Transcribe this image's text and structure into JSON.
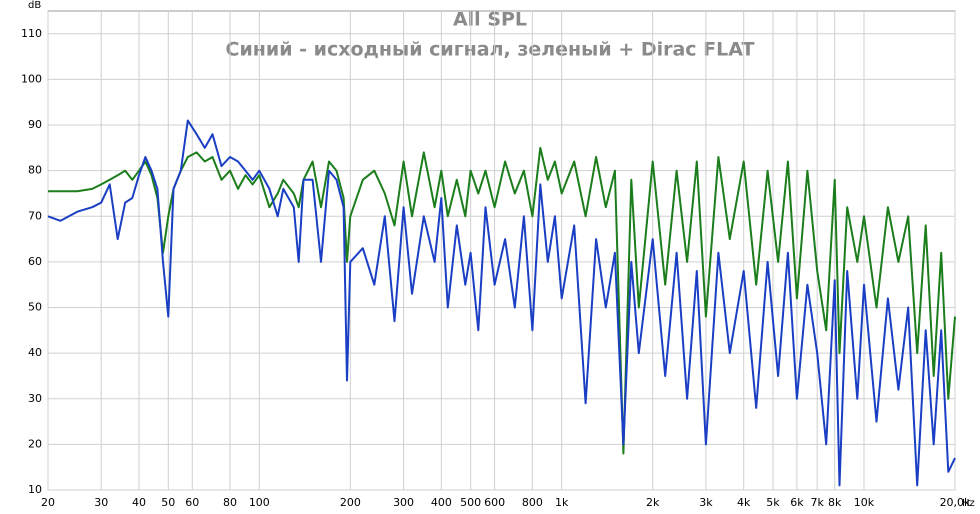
{
  "chart_data": {
    "type": "line",
    "title": "All SPL",
    "subtitle": "Синий - исходный сигнал, зеленый + Dirac FLAT",
    "ylabel": "dB",
    "xlabel": "Hz",
    "xscale": "log",
    "grid": true,
    "xlim": [
      20,
      20000
    ],
    "ylim": [
      10,
      115
    ],
    "yticks": [
      10,
      20,
      30,
      40,
      50,
      60,
      70,
      80,
      90,
      100,
      110
    ],
    "xticks": [
      20,
      30,
      40,
      50,
      60,
      80,
      100,
      200,
      300,
      400,
      500,
      600,
      800,
      {
        "value": 1000,
        "label": "1k"
      },
      {
        "value": 2000,
        "label": "2k"
      },
      {
        "value": 3000,
        "label": "3k"
      },
      {
        "value": 4000,
        "label": "4k"
      },
      {
        "value": 5000,
        "label": "5k"
      },
      {
        "value": 6000,
        "label": "6k"
      },
      {
        "value": 7000,
        "label": "7k"
      },
      {
        "value": 8000,
        "label": "8k"
      },
      {
        "value": 10000,
        "label": "10k"
      },
      {
        "value": 20000,
        "label": "20,0k"
      }
    ],
    "x": [
      20,
      22,
      25,
      28,
      30,
      32,
      34,
      36,
      38,
      40,
      42,
      44,
      46,
      48,
      50,
      52,
      55,
      58,
      62,
      66,
      70,
      75,
      80,
      85,
      90,
      95,
      100,
      108,
      115,
      120,
      130,
      135,
      140,
      150,
      160,
      170,
      180,
      190,
      195,
      200,
      220,
      240,
      260,
      280,
      300,
      320,
      350,
      380,
      400,
      420,
      450,
      480,
      500,
      530,
      560,
      600,
      650,
      700,
      750,
      800,
      850,
      900,
      950,
      1000,
      1100,
      1200,
      1300,
      1400,
      1500,
      1600,
      1700,
      1800,
      2000,
      2200,
      2400,
      2600,
      2800,
      3000,
      3300,
      3600,
      4000,
      4400,
      4800,
      5200,
      5600,
      6000,
      6500,
      7000,
      7500,
      8000,
      8300,
      8800,
      9500,
      10000,
      11000,
      12000,
      13000,
      14000,
      15000,
      16000,
      17000,
      18000,
      19000,
      20000
    ],
    "series": [
      {
        "name": "Синий",
        "color": "#1a3fc4",
        "values": [
          70,
          69,
          71,
          72,
          73,
          77,
          65,
          73,
          74,
          79,
          83,
          80,
          76,
          60,
          48,
          76,
          80,
          91,
          88,
          85,
          88,
          81,
          83,
          82,
          80,
          78,
          80,
          76,
          70,
          76,
          72,
          60,
          78,
          78,
          60,
          80,
          78,
          72,
          34,
          60,
          63,
          55,
          70,
          47,
          72,
          53,
          70,
          60,
          74,
          50,
          68,
          55,
          62,
          45,
          72,
          55,
          65,
          50,
          70,
          45,
          77,
          60,
          70,
          52,
          68,
          29,
          65,
          50,
          62,
          20,
          60,
          40,
          65,
          35,
          62,
          30,
          58,
          20,
          62,
          40,
          58,
          28,
          60,
          35,
          62,
          30,
          55,
          40,
          20,
          56,
          11,
          58,
          30,
          55,
          25,
          52,
          32,
          50,
          11,
          45,
          20,
          45,
          14,
          17
        ]
      },
      {
        "name": "зеленый",
        "color": "#1b7d1b",
        "values": [
          75.5,
          75.5,
          75.5,
          76,
          77,
          78,
          79,
          80,
          78,
          80,
          82,
          79,
          74,
          62,
          70,
          76,
          80,
          83,
          84,
          82,
          83,
          78,
          80,
          76,
          79,
          77,
          79,
          72,
          75,
          78,
          75,
          72,
          78,
          82,
          72,
          82,
          80,
          74,
          60,
          70,
          78,
          80,
          75,
          68,
          82,
          70,
          84,
          72,
          80,
          70,
          78,
          70,
          80,
          75,
          80,
          72,
          82,
          75,
          80,
          70,
          85,
          78,
          82,
          75,
          82,
          70,
          83,
          72,
          80,
          18,
          78,
          50,
          82,
          55,
          80,
          60,
          82,
          48,
          83,
          65,
          82,
          55,
          80,
          60,
          82,
          52,
          80,
          58,
          45,
          78,
          40,
          72,
          60,
          70,
          50,
          72,
          60,
          70,
          40,
          68,
          35,
          62,
          30,
          48
        ]
      }
    ]
  }
}
